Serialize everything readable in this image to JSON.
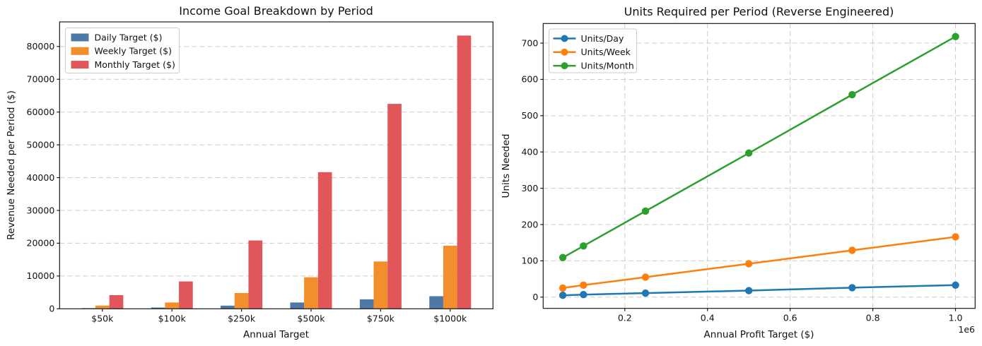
{
  "figure": {
    "background": "#ffffff",
    "colors": {
      "grid": "#cccccc",
      "spine": "#1a1a1a",
      "text": "#111111",
      "legend_border": "#cccccc"
    }
  },
  "chart_data": [
    {
      "type": "bar",
      "title": "Income Goal Breakdown by Period",
      "xlabel": "Annual Target",
      "ylabel": "Revenue Needed per Period ($)",
      "categories": [
        "$50k",
        "$100k",
        "$250k",
        "$500k",
        "$750k",
        "$1000k"
      ],
      "series": [
        {
          "name": "Daily Target ($)",
          "color": "#4E79A7",
          "values": [
            192,
            385,
            962,
            1923,
            2885,
            3846
          ]
        },
        {
          "name": "Weekly Target ($)",
          "color": "#F28E2B",
          "values": [
            962,
            1923,
            4808,
            9615,
            14423,
            19231
          ]
        },
        {
          "name": "Monthly Target ($)",
          "color": "#E15759",
          "values": [
            4167,
            8333,
            20833,
            41667,
            62500,
            83333
          ]
        }
      ],
      "ylim": [
        0,
        87500
      ],
      "yticks": [
        0,
        10000,
        20000,
        30000,
        40000,
        50000,
        60000,
        70000,
        80000
      ],
      "grid": "y",
      "grid_style": "dashed",
      "legend_position": "upper left"
    },
    {
      "type": "line",
      "title": "Units Required per Period (Reverse Engineered)",
      "xlabel": "Annual Profit Target ($)",
      "ylabel": "Units Needed",
      "x": [
        50000,
        100000,
        250000,
        500000,
        750000,
        1000000
      ],
      "series": [
        {
          "name": "Units/Day",
          "color": "#1f77b4",
          "values": [
            5,
            7,
            11,
            18,
            26,
            33
          ]
        },
        {
          "name": "Units/Week",
          "color": "#ff7f0e",
          "values": [
            25,
            33,
            55,
            92,
            129,
            166
          ]
        },
        {
          "name": "Units/Month",
          "color": "#2ca02c",
          "values": [
            109,
            141,
            237,
            397,
            558,
            718
          ]
        }
      ],
      "xlim": [
        2500,
        1047500
      ],
      "ylim": [
        -31,
        754
      ],
      "xticks": [
        200000,
        400000,
        600000,
        800000,
        1000000
      ],
      "xtick_labels": [
        "0.2",
        "0.4",
        "0.6",
        "0.8",
        "1.0"
      ],
      "x_offset_label": "1e6",
      "yticks": [
        0,
        100,
        200,
        300,
        400,
        500,
        600,
        700
      ],
      "grid": "both",
      "grid_style": "dashed",
      "legend_position": "upper left",
      "marker": "o"
    }
  ]
}
